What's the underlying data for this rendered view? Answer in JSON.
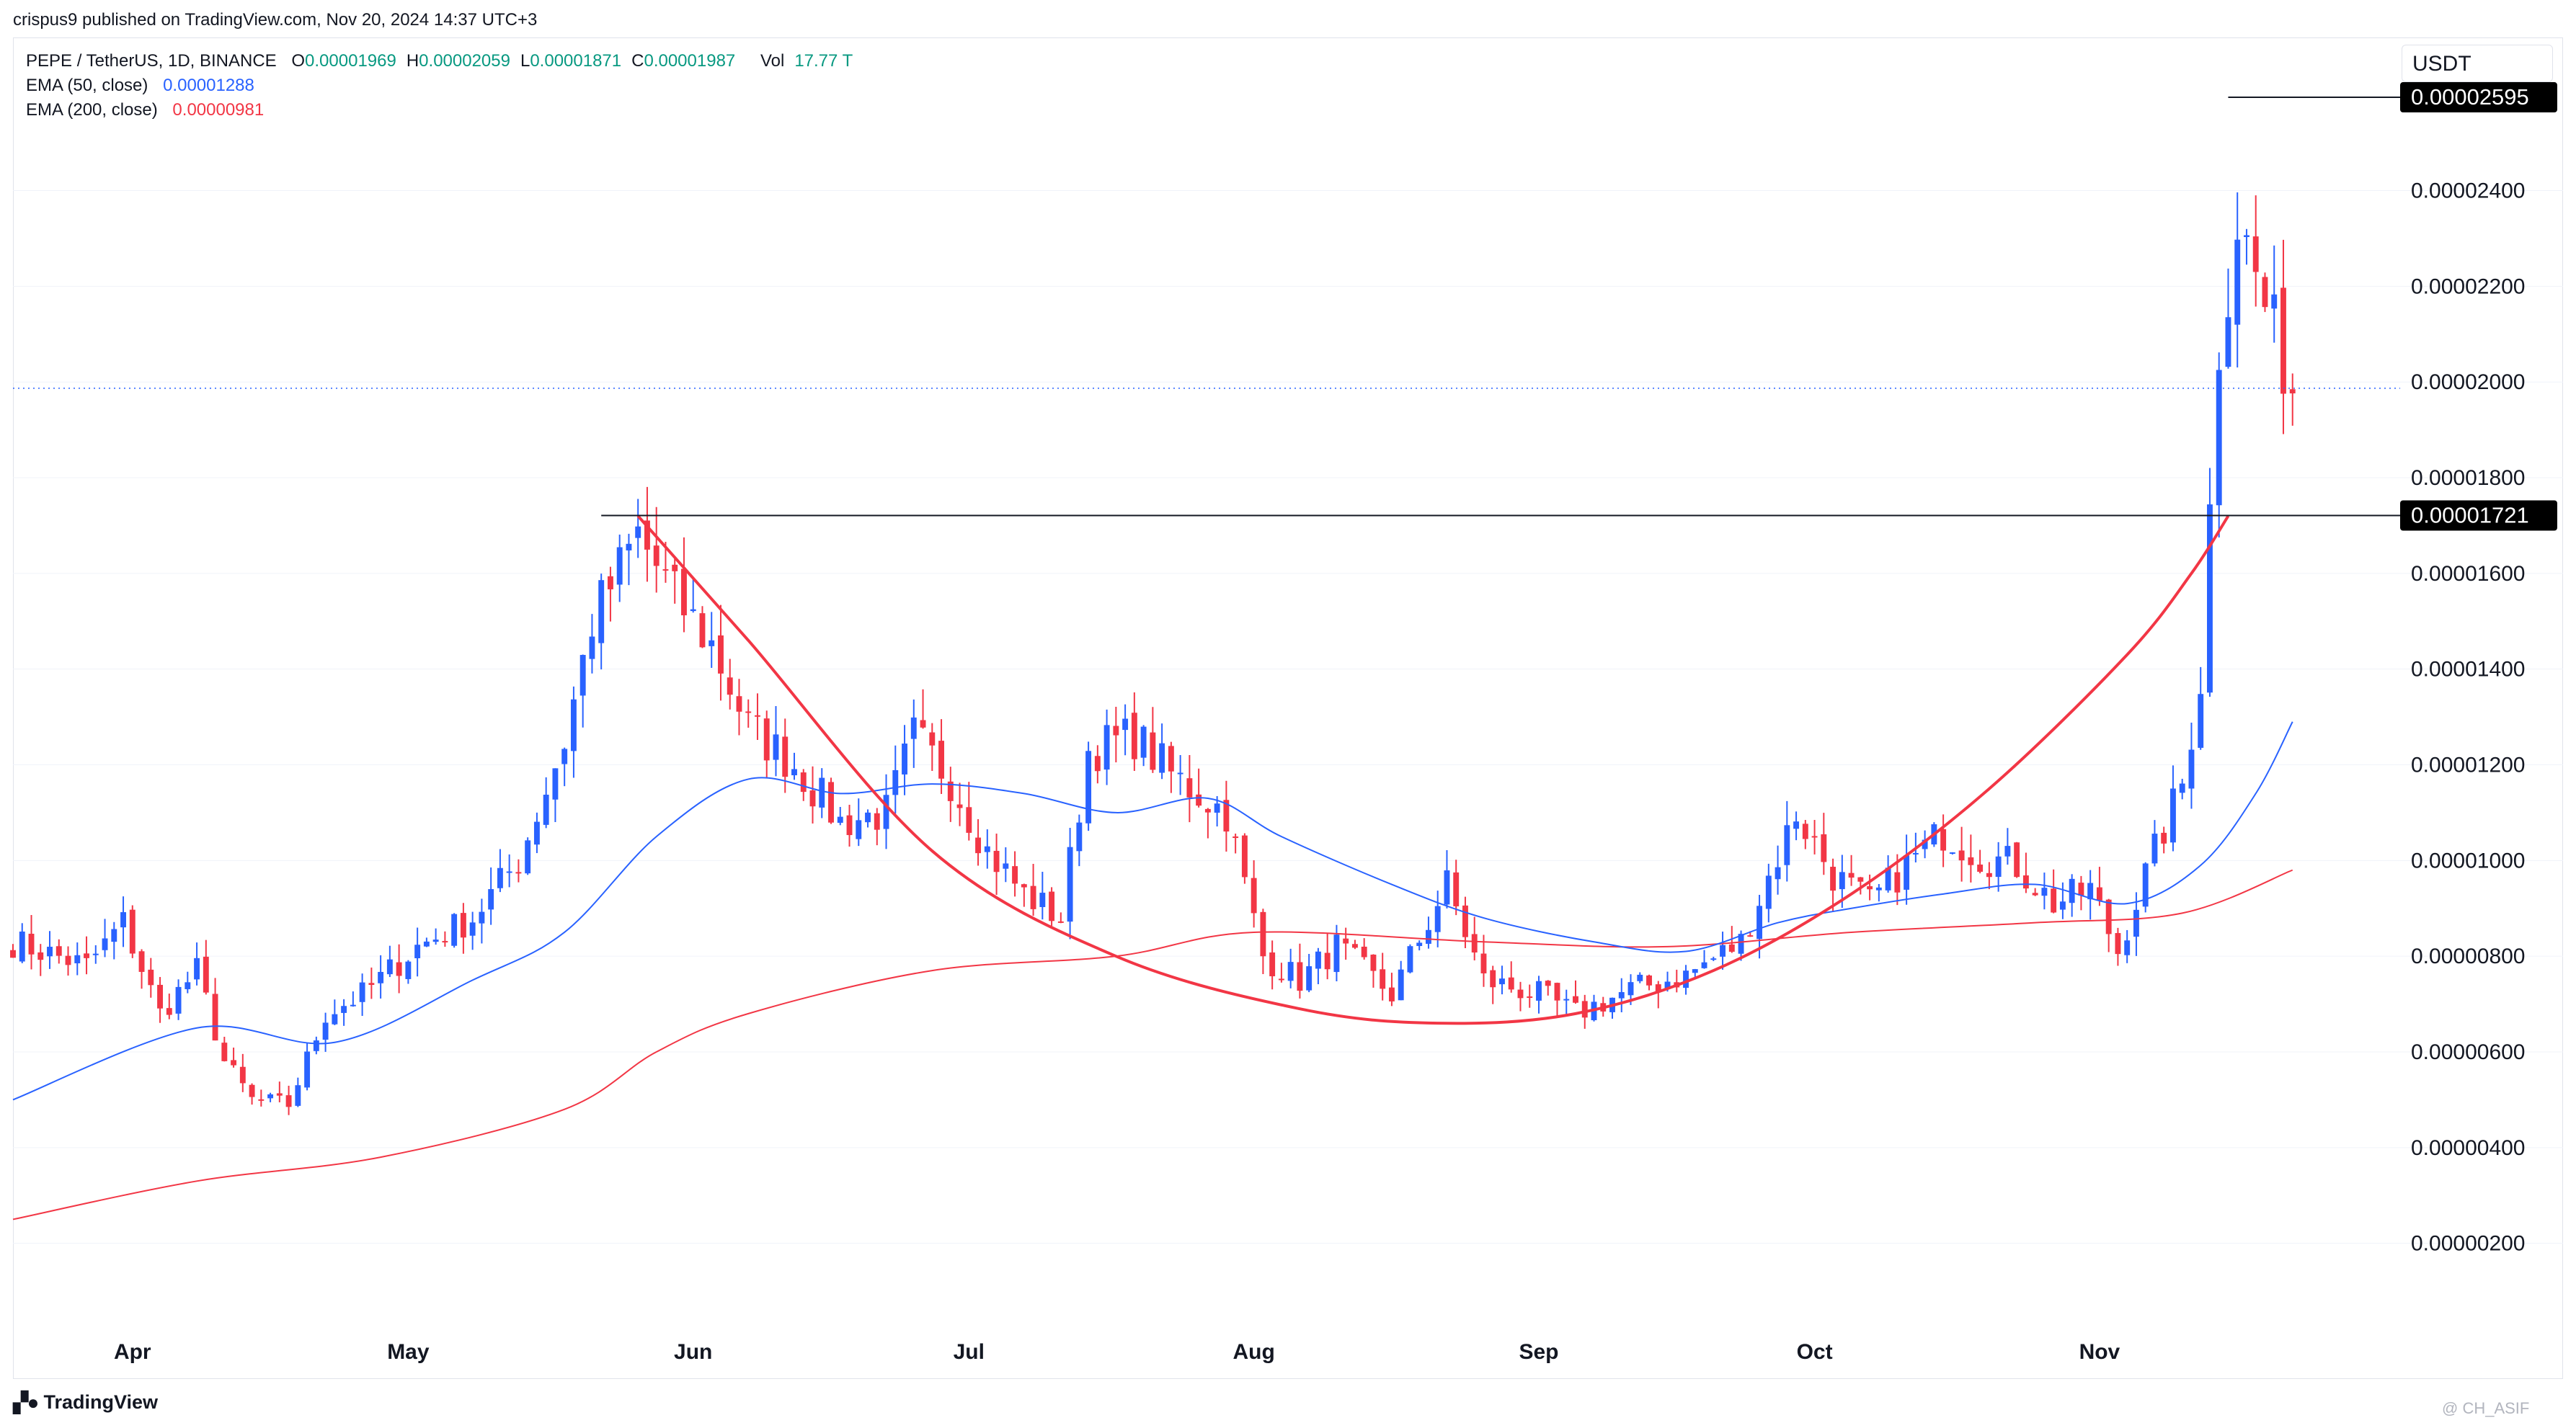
{
  "header": {
    "published": "crispus9 published on TradingView.com, Nov 20, 2024 14:37 UTC+3"
  },
  "legend": {
    "symbol": "PEPE / TetherUS, 1D, BINANCE",
    "ohlc": [
      {
        "key": "O",
        "value": "0.00001969"
      },
      {
        "key": "H",
        "value": "0.00002059"
      },
      {
        "key": "L",
        "value": "0.00001871"
      },
      {
        "key": "C",
        "value": "0.00001987"
      }
    ],
    "vol_label": "Vol",
    "vol_value": "17.77 T",
    "ema50_label": "EMA (50, close)",
    "ema50_value": "0.00001288",
    "ema200_label": "EMA (200, close)",
    "ema200_value": "0.00000981"
  },
  "currency": "USDT",
  "footer": {
    "logo_text": "TradingView",
    "watermark": "@ CH_ASIF"
  },
  "colors": {
    "up": "#2962ff",
    "down": "#f23645",
    "ema50": "#2962ff",
    "ema200": "#f23645",
    "annotation": "#f23645",
    "grid": "#f0f3fa",
    "price_line": "#2962ff",
    "badge_bg": "#000000"
  },
  "chart_data": {
    "type": "candlestick",
    "title": "PEPE / TetherUS, 1D, BINANCE",
    "x_ticks": [
      "Apr",
      "May",
      "Jun",
      "Jul",
      "Aug",
      "Sep",
      "Oct",
      "Nov"
    ],
    "x_tick_days": [
      13,
      43,
      74,
      104,
      135,
      166,
      196,
      227
    ],
    "y_ticks": [
      2e-06,
      4e-06,
      6e-06,
      8e-06,
      1e-05,
      1.2e-05,
      1.4e-05,
      1.6e-05,
      1.8e-05,
      2e-05,
      2.2e-05,
      2.4e-05
    ],
    "y_tick_labels": [
      "0.00000200",
      "0.00000400",
      "0.00000600",
      "0.00000800",
      "0.00001000",
      "0.00001200",
      "0.00001400",
      "0.00001600",
      "0.00001800",
      "0.00002000",
      "0.00002200",
      "0.00002400"
    ],
    "ylim": [
      7e-07,
      2.72e-05
    ],
    "xlim": [
      0,
      255
    ],
    "horizontal_levels": [
      {
        "label": "0.00002595",
        "value": 2.595e-05,
        "from_day": 241
      },
      {
        "label": "0.00001721",
        "value": 1.721e-05,
        "from_day": 64
      }
    ],
    "last_close": 1.987e-05,
    "candle_anchors": [
      [
        0,
        8.3e-06
      ],
      [
        8,
        7.8e-06
      ],
      [
        12,
        8.7e-06
      ],
      [
        16,
        6.8e-06
      ],
      [
        20,
        7.7e-06
      ],
      [
        23,
        5.8e-06
      ],
      [
        26,
        5e-06
      ],
      [
        30,
        4.9e-06
      ],
      [
        34,
        6.8e-06
      ],
      [
        38,
        7.2e-06
      ],
      [
        44,
        8.2e-06
      ],
      [
        50,
        8.8e-06
      ],
      [
        55,
        1e-05
      ],
      [
        60,
        1.25e-05
      ],
      [
        63,
        1.5e-05
      ],
      [
        68,
        1.68e-05
      ],
      [
        72,
        1.55e-05
      ],
      [
        76,
        1.45e-05
      ],
      [
        80,
        1.28e-05
      ],
      [
        85,
        1.2e-05
      ],
      [
        90,
        1.08e-05
      ],
      [
        95,
        1.1e-05
      ],
      [
        98,
        1.26e-05
      ],
      [
        102,
        1.17e-05
      ],
      [
        106,
        1.02e-05
      ],
      [
        110,
        9.3e-06
      ],
      [
        114,
        8.8e-06
      ],
      [
        117,
        1.23e-05
      ],
      [
        122,
        1.26e-05
      ],
      [
        126,
        1.18e-05
      ],
      [
        132,
        1.1e-05
      ],
      [
        136,
        8e-06
      ],
      [
        140,
        7.5e-06
      ],
      [
        144,
        8.2e-06
      ],
      [
        150,
        7.2e-06
      ],
      [
        156,
        9.5e-06
      ],
      [
        160,
        7.5e-06
      ],
      [
        166,
        7.2e-06
      ],
      [
        170,
        6.8e-06
      ],
      [
        176,
        7.3e-06
      ],
      [
        182,
        7.6e-06
      ],
      [
        188,
        8.3e-06
      ],
      [
        192,
        1.01e-05
      ],
      [
        194,
        1.1e-05
      ],
      [
        198,
        9.7e-06
      ],
      [
        202,
        9.1e-06
      ],
      [
        206,
        9.9e-06
      ],
      [
        210,
        1.06e-05
      ],
      [
        214,
        1.01e-05
      ],
      [
        218,
        9.9e-06
      ],
      [
        222,
        9.1e-06
      ],
      [
        226,
        9.4e-06
      ],
      [
        229,
        8.1e-06
      ],
      [
        232,
        9.7e-06
      ],
      [
        236,
        1.16e-05
      ],
      [
        238,
        1.38e-05
      ],
      [
        240,
        2.08e-05
      ],
      [
        242,
        2.34e-05
      ],
      [
        244,
        2.22e-05
      ],
      [
        246,
        2.1e-05
      ],
      [
        248,
        1.99e-05
      ]
    ],
    "ema50": [
      [
        0,
        5e-06
      ],
      [
        20,
        6.5e-06
      ],
      [
        35,
        6.2e-06
      ],
      [
        50,
        7.5e-06
      ],
      [
        60,
        8.5e-06
      ],
      [
        70,
        1.05e-05
      ],
      [
        80,
        1.17e-05
      ],
      [
        90,
        1.14e-05
      ],
      [
        100,
        1.16e-05
      ],
      [
        110,
        1.14e-05
      ],
      [
        120,
        1.1e-05
      ],
      [
        130,
        1.13e-05
      ],
      [
        138,
        1.05e-05
      ],
      [
        150,
        9.5e-06
      ],
      [
        160,
        8.8e-06
      ],
      [
        172,
        8.3e-06
      ],
      [
        182,
        8.1e-06
      ],
      [
        192,
        8.7e-06
      ],
      [
        200,
        9e-06
      ],
      [
        210,
        9.3e-06
      ],
      [
        220,
        9.5e-06
      ],
      [
        230,
        9.1e-06
      ],
      [
        238,
        9.9e-06
      ],
      [
        244,
        1.14e-05
      ],
      [
        248,
        1.29e-05
      ]
    ],
    "ema200": [
      [
        0,
        2.5e-06
      ],
      [
        20,
        3.3e-06
      ],
      [
        40,
        3.8e-06
      ],
      [
        60,
        4.8e-06
      ],
      [
        70,
        6e-06
      ],
      [
        80,
        6.8e-06
      ],
      [
        100,
        7.7e-06
      ],
      [
        120,
        8e-06
      ],
      [
        135,
        8.5e-06
      ],
      [
        160,
        8.3e-06
      ],
      [
        180,
        8.2e-06
      ],
      [
        200,
        8.5e-06
      ],
      [
        220,
        8.7e-06
      ],
      [
        236,
        8.9e-06
      ],
      [
        248,
        9.8e-06
      ]
    ],
    "cup_curve": [
      [
        68,
        1.72e-05
      ],
      [
        80,
        1.46e-05
      ],
      [
        100,
        1.02e-05
      ],
      [
        120,
        8e-06
      ],
      [
        140,
        6.9e-06
      ],
      [
        155,
        6.6e-06
      ],
      [
        170,
        6.8e-06
      ],
      [
        185,
        7.7e-06
      ],
      [
        200,
        9.3e-06
      ],
      [
        215,
        1.15e-05
      ],
      [
        230,
        1.43e-05
      ],
      [
        237,
        1.6e-05
      ],
      [
        241,
        1.72e-05
      ]
    ]
  }
}
